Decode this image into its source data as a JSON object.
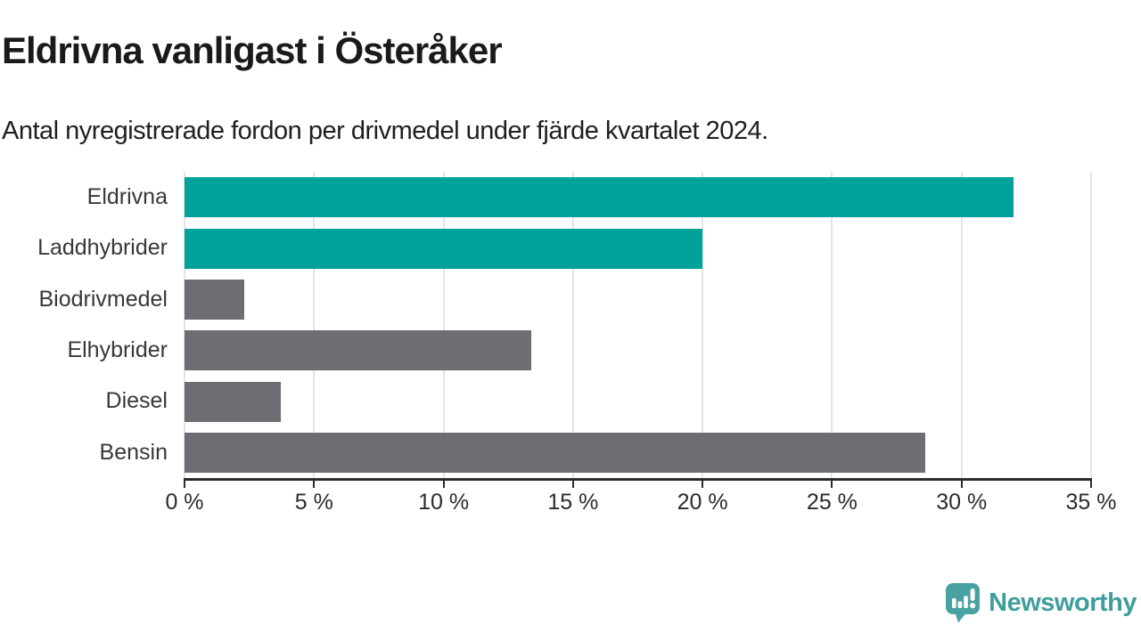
{
  "chart_data": {
    "type": "bar",
    "orientation": "horizontal",
    "title": "Eldrivna vanligast i Österåker",
    "subtitle": "Antal nyregistrerade fordon per drivmedel under fjärde kvartalet 2024.",
    "categories": [
      "Eldrivna",
      "Laddhybrider",
      "Biodrivmedel",
      "Elhybrider",
      "Diesel",
      "Bensin"
    ],
    "values": [
      32.0,
      20.0,
      2.3,
      13.4,
      3.7,
      28.6
    ],
    "unit": "%",
    "highlighted": [
      true,
      true,
      false,
      false,
      false,
      false
    ],
    "xlim": [
      0,
      35
    ],
    "x_ticks": [
      0,
      5,
      10,
      15,
      20,
      25,
      30,
      35
    ],
    "x_tick_labels": [
      "0 %",
      "5 %",
      "10 %",
      "15 %",
      "20 %",
      "25 %",
      "30 %",
      "35 %"
    ],
    "grid": "vertical-only",
    "legend": "none",
    "colors": {
      "highlight": "#00a29a",
      "base": "#6e6d74",
      "gridline": "#e4e4e4",
      "axis": "#2b2b2b",
      "title_text": "#1a1a1a",
      "label_text": "#383838"
    }
  },
  "branding": {
    "name": "Newsworthy",
    "color": "#3f9e9c",
    "icon_color": "#47a2a1",
    "icon": "speech-bubble-with-bar-chart-and-exclamation"
  }
}
